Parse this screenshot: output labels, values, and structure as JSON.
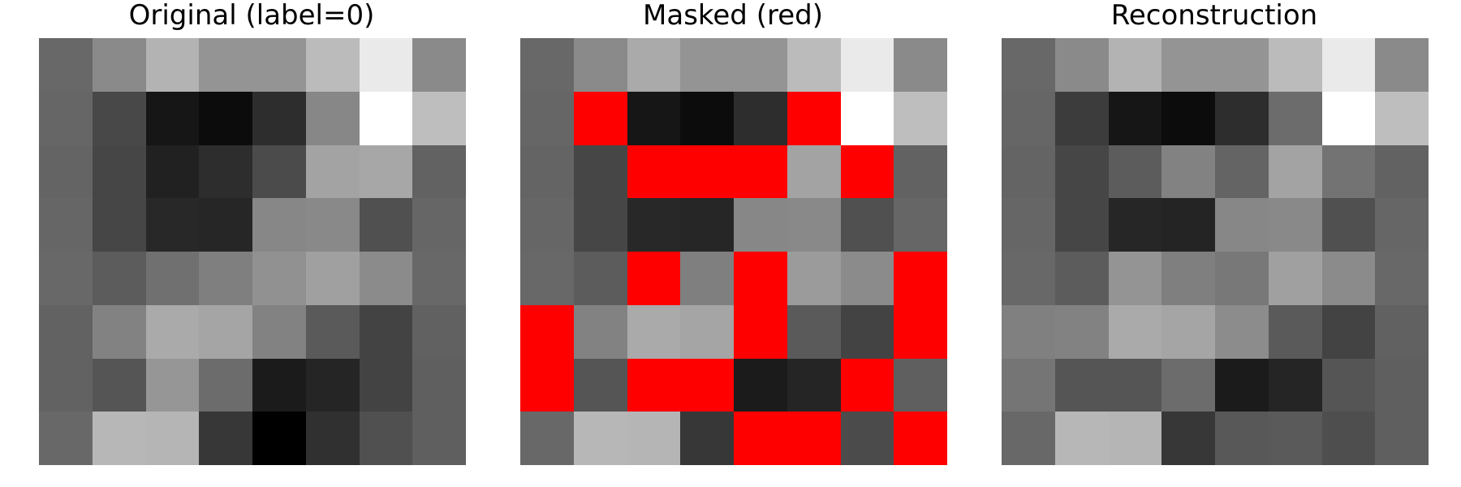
{
  "chart_data": [
    {
      "type": "heatmap",
      "title": "Original (label=0)",
      "colormap": "gray",
      "value_range": [
        0,
        255
      ],
      "values": [
        [
          104,
          138,
          179,
          148,
          148,
          187,
          234,
          138
        ],
        [
          102,
          72,
          22,
          12,
          45,
          135,
          255,
          190
        ],
        [
          100,
          70,
          33,
          45,
          75,
          163,
          167,
          98
        ],
        [
          102,
          70,
          40,
          38,
          135,
          137,
          80,
          102
        ],
        [
          104,
          92,
          112,
          127,
          145,
          160,
          139,
          104
        ],
        [
          98,
          130,
          170,
          165,
          130,
          90,
          67,
          97
        ],
        [
          98,
          85,
          150,
          108,
          27,
          37,
          67,
          95
        ],
        [
          104,
          183,
          181,
          55,
          0,
          48,
          80,
          95
        ]
      ]
    },
    {
      "type": "heatmap",
      "title": "Masked (red)",
      "colormap": "gray",
      "mask_color": "#ff0000",
      "value_range": [
        0,
        255
      ],
      "values": [
        [
          104,
          138,
          170,
          148,
          148,
          187,
          234,
          138
        ],
        [
          102,
          null,
          22,
          12,
          45,
          null,
          255,
          190
        ],
        [
          100,
          70,
          null,
          null,
          null,
          163,
          null,
          98
        ],
        [
          102,
          70,
          40,
          38,
          135,
          137,
          80,
          102
        ],
        [
          104,
          92,
          null,
          127,
          null,
          155,
          139,
          null
        ],
        [
          null,
          130,
          170,
          165,
          null,
          90,
          67,
          null
        ],
        [
          null,
          85,
          null,
          null,
          27,
          37,
          null,
          95
        ],
        [
          104,
          183,
          181,
          55,
          null,
          null,
          75,
          null
        ]
      ]
    },
    {
      "type": "heatmap",
      "title": "Reconstruction",
      "colormap": "gray",
      "value_range": [
        0,
        255
      ],
      "values": [
        [
          104,
          138,
          179,
          148,
          148,
          187,
          234,
          138
        ],
        [
          102,
          60,
          22,
          12,
          45,
          108,
          255,
          190
        ],
        [
          100,
          70,
          92,
          130,
          100,
          163,
          115,
          98
        ],
        [
          102,
          70,
          38,
          36,
          135,
          137,
          80,
          102
        ],
        [
          104,
          92,
          148,
          127,
          120,
          160,
          139,
          104
        ],
        [
          128,
          130,
          170,
          165,
          140,
          90,
          67,
          97
        ],
        [
          117,
          85,
          85,
          108,
          27,
          37,
          85,
          95
        ],
        [
          104,
          183,
          181,
          55,
          88,
          90,
          78,
          95
        ]
      ]
    }
  ]
}
